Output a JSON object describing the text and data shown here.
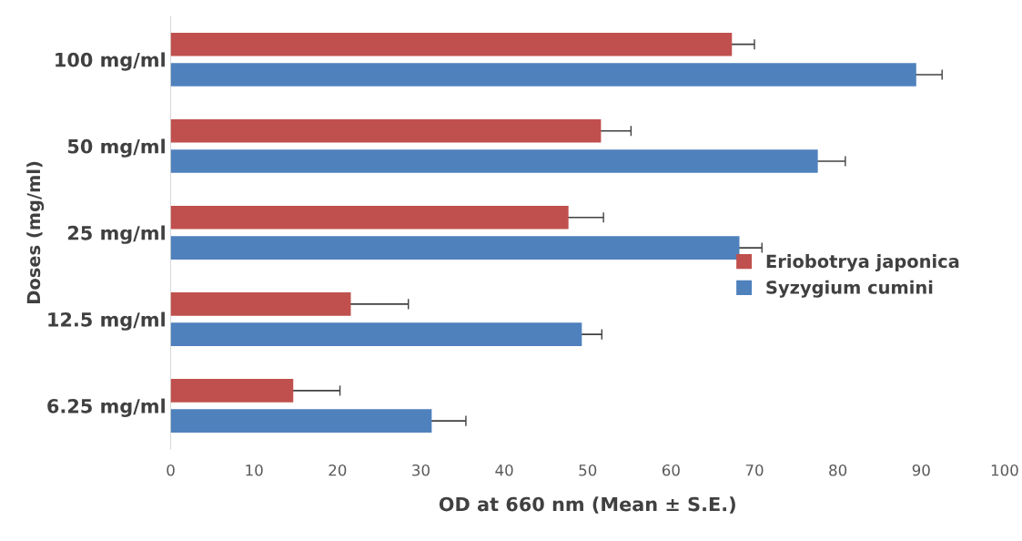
{
  "chart_data": {
    "type": "bar",
    "orientation": "horizontal",
    "xlabel": "OD at 660 nm (Mean ± S.E.)",
    "ylabel": "Doses (mg/ml)",
    "categories": [
      "100 mg/ml",
      "50 mg/ml",
      "25 mg/ml",
      "12.5 mg/ml",
      "6.25 mg/ml"
    ],
    "series": [
      {
        "name": "Eriobotrya japonica",
        "color": "#c0504d",
        "values": [
          67.3,
          51.6,
          47.7,
          21.6,
          14.7
        ],
        "errors": [
          2.7,
          3.6,
          4.2,
          6.9,
          5.6
        ]
      },
      {
        "name": "Syzygium cumini",
        "color": "#4f81bd",
        "values": [
          89.4,
          77.6,
          68.2,
          49.3,
          31.3
        ],
        "errors": [
          3.1,
          3.3,
          2.7,
          2.4,
          4.1
        ]
      }
    ],
    "xlim": [
      0,
      100
    ],
    "xticks": [
      0,
      10,
      20,
      30,
      40,
      50,
      60,
      70,
      80,
      90,
      100
    ],
    "grid": false,
    "legend": "right"
  }
}
